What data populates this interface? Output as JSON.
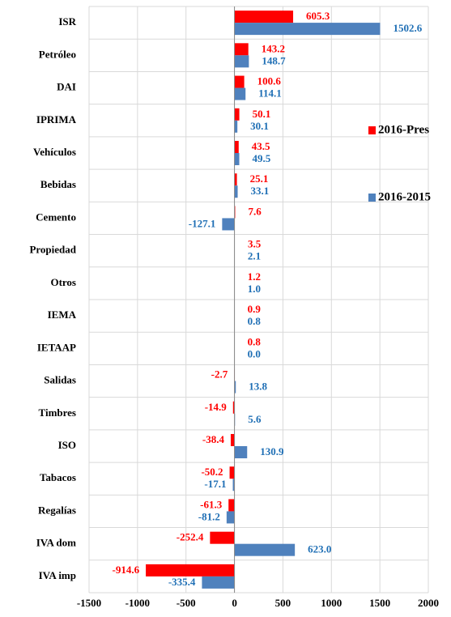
{
  "chart_data": {
    "type": "bar",
    "orientation": "horizontal",
    "categories": [
      "ISR",
      "Petróleo",
      "DAI",
      "IPRIMA",
      "Vehículos",
      "Bebidas",
      "Cemento",
      "Propiedad",
      "Otros",
      "IEMA",
      "IETAAP",
      "Salidas",
      "Timbres",
      "ISO",
      "Tabacos",
      "Regalías",
      "IVA dom",
      "IVA imp"
    ],
    "series": [
      {
        "name": "2016-Pres",
        "color": "#ff0000",
        "label_color": "#ff0000",
        "values": [
          605.3,
          143.2,
          100.6,
          50.1,
          43.5,
          25.1,
          7.6,
          3.5,
          1.2,
          0.9,
          0.8,
          -2.7,
          -14.9,
          -38.4,
          -50.2,
          -61.3,
          -252.4,
          -914.6
        ],
        "value_labels": [
          "605.3",
          "143.2",
          "100.6",
          "50.1",
          "43.5",
          "25.1",
          "7.6",
          "3.5",
          "1.2",
          "0.9",
          "0.8",
          "-2.7",
          "-14.9",
          "-38.4",
          "-50.2",
          "-61.3",
          "-252.4",
          "-914.6"
        ]
      },
      {
        "name": "2016-2015",
        "color": "#4f81bd",
        "label_color": "#1f6fb5",
        "values": [
          1502.6,
          148.7,
          114.1,
          30.1,
          49.5,
          33.1,
          -127.1,
          2.1,
          1.0,
          0.8,
          0.0,
          13.8,
          5.6,
          130.9,
          -17.1,
          -81.2,
          623.0,
          -335.4
        ],
        "value_labels": [
          "1502.6",
          "148.7",
          "114.1",
          "30.1",
          "49.5",
          "33.1",
          "-127.1",
          "2.1",
          "1.0",
          "0.8",
          "0.0",
          "13.8",
          "5.6",
          "130.9",
          "-17.1",
          "-81.2",
          "623.0",
          "-335.4"
        ]
      }
    ],
    "xlim": [
      -1500,
      2000
    ],
    "xticks": [
      -1500,
      -1000,
      -500,
      0,
      500,
      1000,
      1500,
      2000
    ],
    "grid": true,
    "legend": "right"
  }
}
